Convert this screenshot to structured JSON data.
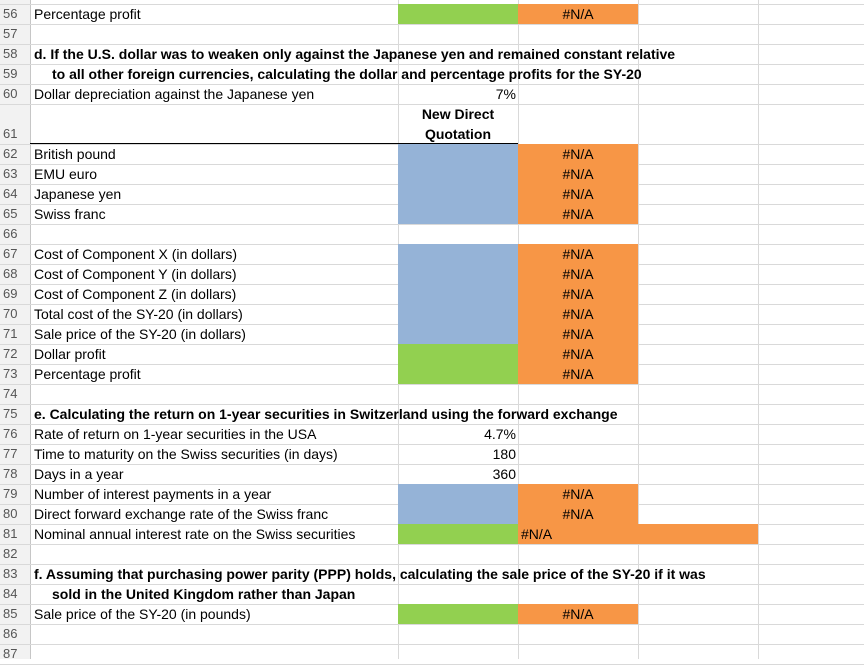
{
  "rows": [
    {
      "n": "56",
      "a": "Percentage profit",
      "e": "#N/A"
    },
    {
      "n": "57"
    },
    {
      "n": "58",
      "heading": "d. If the U.S. dollar was to weaken only against the Japanese yen and remained constant relative"
    },
    {
      "n": "59",
      "heading": "to all other foreign currencies, calculating the dollar and percentage profits for the SY-20"
    },
    {
      "n": "60",
      "a": "Dollar depreciation against the Japanese yen",
      "c": "7%"
    },
    {
      "n": "61",
      "header_line1": "New Direct",
      "header_line2": "Quotation"
    },
    {
      "n": "62",
      "a": "British pound",
      "e": "#N/A"
    },
    {
      "n": "63",
      "a": "EMU euro",
      "e": "#N/A"
    },
    {
      "n": "64",
      "a": "Japanese yen",
      "e": "#N/A"
    },
    {
      "n": "65",
      "a": "Swiss franc",
      "e": "#N/A"
    },
    {
      "n": "66"
    },
    {
      "n": "67",
      "a": "Cost of Component X (in dollars)",
      "e": "#N/A"
    },
    {
      "n": "68",
      "a": "Cost of Component Y (in dollars)",
      "e": "#N/A"
    },
    {
      "n": "69",
      "a": "Cost of Component Z (in dollars)",
      "e": "#N/A"
    },
    {
      "n": "70",
      "a": "Total cost of the SY-20 (in dollars)",
      "e": "#N/A"
    },
    {
      "n": "71",
      "a": "Sale price of the SY-20 (in dollars)",
      "e": "#N/A"
    },
    {
      "n": "72",
      "a": "Dollar profit",
      "e": "#N/A"
    },
    {
      "n": "73",
      "a": "Percentage profit",
      "e": "#N/A"
    },
    {
      "n": "74"
    },
    {
      "n": "75",
      "heading": "e. Calculating the return on 1-year securities in Switzerland using the forward exchange"
    },
    {
      "n": "76",
      "a": "Rate of return on 1-year securities in the USA",
      "c": "4.7%"
    },
    {
      "n": "77",
      "a": "Time to maturity on the Swiss securities (in days)",
      "c": "180"
    },
    {
      "n": "78",
      "a": "Days in a year",
      "c": "360"
    },
    {
      "n": "79",
      "a": "Number of interest payments in a year",
      "e": "#N/A"
    },
    {
      "n": "80",
      "a": "Direct forward exchange rate of the Swiss franc",
      "e": "#N/A"
    },
    {
      "n": "81",
      "a": "Nominal annual interest rate on the Swiss securities",
      "d": "#N/A"
    },
    {
      "n": "82"
    },
    {
      "n": "83",
      "heading": "f. Assuming that purchasing power parity (PPP) holds, calculating the sale price of the SY-20 if it was"
    },
    {
      "n": "84",
      "heading": "sold in the United Kingdom rather than Japan"
    },
    {
      "n": "85",
      "a": "Sale price of the SY-20 (in pounds)",
      "e": "#N/A"
    },
    {
      "n": "86"
    },
    {
      "n": "87"
    }
  ],
  "colors": {
    "input_blue": "#95b3d7",
    "input_green": "#92d050",
    "output_orange": "#f79646",
    "grid": "#d9d9d9"
  }
}
